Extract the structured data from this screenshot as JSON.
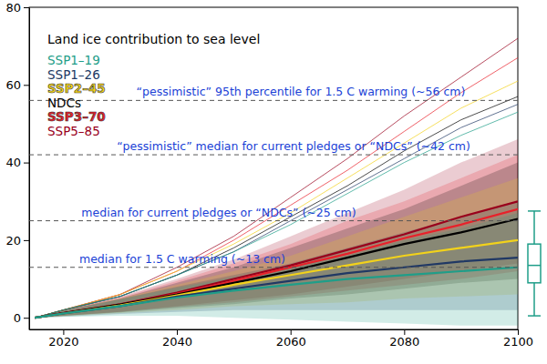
{
  "chart_data": {
    "type": "line",
    "title": "Land ice contribution to sea level",
    "legend": "top-left",
    "x": [
      2015,
      2020,
      2030,
      2040,
      2050,
      2060,
      2070,
      2080,
      2090,
      2100
    ],
    "xlim": [
      2014,
      2100
    ],
    "xticks": [
      2020,
      2040,
      2060,
      2080,
      2100
    ],
    "ylim": [
      -3,
      80
    ],
    "yticks": [
      0,
      20,
      40,
      60,
      80
    ],
    "series": [
      {
        "name": "SSP1–19",
        "color": "#1f9e89",
        "values": [
          0,
          1.1,
          3,
          5.2,
          7,
          8.5,
          10,
          11,
          12,
          13
        ],
        "low": [
          0,
          0.2,
          0.5,
          0.5,
          0,
          -0.5,
          -1,
          -1.5,
          -2,
          -2
        ],
        "high": [
          0,
          1.8,
          4.8,
          7.8,
          10.5,
          13,
          16,
          20,
          23,
          27
        ],
        "upper": [
          0,
          2,
          5.5,
          11,
          17,
          24,
          32,
          40,
          47,
          53
        ]
      },
      {
        "name": "SSP1–26",
        "color": "#203864",
        "values": [
          0,
          1.1,
          3,
          5.5,
          7.5,
          9.5,
          11.5,
          13,
          14.5,
          15.5
        ],
        "low": [
          0,
          0.3,
          1,
          1.5,
          2,
          2,
          2,
          2,
          2,
          2
        ],
        "high": [
          0,
          1.8,
          4.8,
          8,
          11,
          14,
          18,
          22,
          26,
          30
        ],
        "upper": [
          0,
          2,
          5.5,
          11,
          17,
          25,
          33,
          41,
          49,
          55
        ]
      },
      {
        "name": "SSP2–45",
        "color": "#f2d21b",
        "values": [
          0,
          1.1,
          3.2,
          5.8,
          8.5,
          11,
          13.5,
          16,
          18,
          20
        ],
        "low": [
          0,
          0.4,
          1.2,
          2,
          3,
          3.5,
          4,
          5,
          5.5,
          6
        ],
        "high": [
          0,
          1.8,
          5,
          8.5,
          12,
          16,
          21,
          26,
          31,
          36
        ],
        "upper": [
          0,
          2,
          6,
          12,
          19,
          27,
          36,
          45,
          54,
          61
        ]
      },
      {
        "name": "NDCs",
        "color": "#000000",
        "values": [
          0,
          1.2,
          3.4,
          6,
          9,
          12,
          15.5,
          19,
          22,
          25.5
        ],
        "low": [
          0,
          0.5,
          1.4,
          2.5,
          3.5,
          5,
          6,
          7.5,
          9,
          10
        ],
        "high": [
          0,
          2,
          5,
          9,
          13,
          18,
          23,
          28,
          34,
          40
        ],
        "upper": [
          0,
          2,
          5.5,
          11,
          18,
          26,
          34,
          43,
          51,
          57
        ]
      },
      {
        "name": "SSP3–70",
        "color": "#e8202a",
        "values": [
          0,
          1.2,
          3.4,
          6.2,
          9.5,
          13,
          16.5,
          20.5,
          24,
          28
        ],
        "low": [
          0,
          0.5,
          1.5,
          2.8,
          4,
          5.5,
          7,
          8.5,
          10,
          12
        ],
        "high": [
          0,
          2,
          5.2,
          9.5,
          14,
          19,
          25,
          30,
          36,
          42
        ],
        "upper": [
          0,
          2,
          6,
          12,
          20,
          29,
          38,
          48,
          58,
          67
        ]
      },
      {
        "name": "SSP5–85",
        "color": "#99001c",
        "values": [
          0,
          1.2,
          3.5,
          6.5,
          10,
          13.5,
          17.5,
          21.5,
          26,
          30
        ],
        "low": [
          0,
          0.5,
          1.5,
          3,
          4.5,
          6,
          8,
          10,
          12,
          14
        ],
        "high": [
          0,
          2,
          5.5,
          10,
          15,
          21,
          27,
          33,
          40,
          46
        ],
        "upper": [
          0,
          2,
          6,
          13,
          21,
          31,
          41,
          52,
          62,
          72
        ]
      }
    ],
    "annotations": [
      {
        "text": "“pessimistic” 95th percentile for 1.5 C warming (~56 cm)",
        "value": 56
      },
      {
        "text": "“pessimistic” median for current pledges or “NDCs” (~42 cm)",
        "value": 42
      },
      {
        "text": "median for current pledges or “NDCs” (~25 cm)",
        "value": 25
      },
      {
        "text": "median for 1.5 C warming (~13 cm)",
        "value": 13
      }
    ],
    "box": {
      "low": 0.5,
      "q1": 9,
      "median": 13.5,
      "q3": 19,
      "high": 27.5,
      "color": "#1f9e89"
    }
  }
}
